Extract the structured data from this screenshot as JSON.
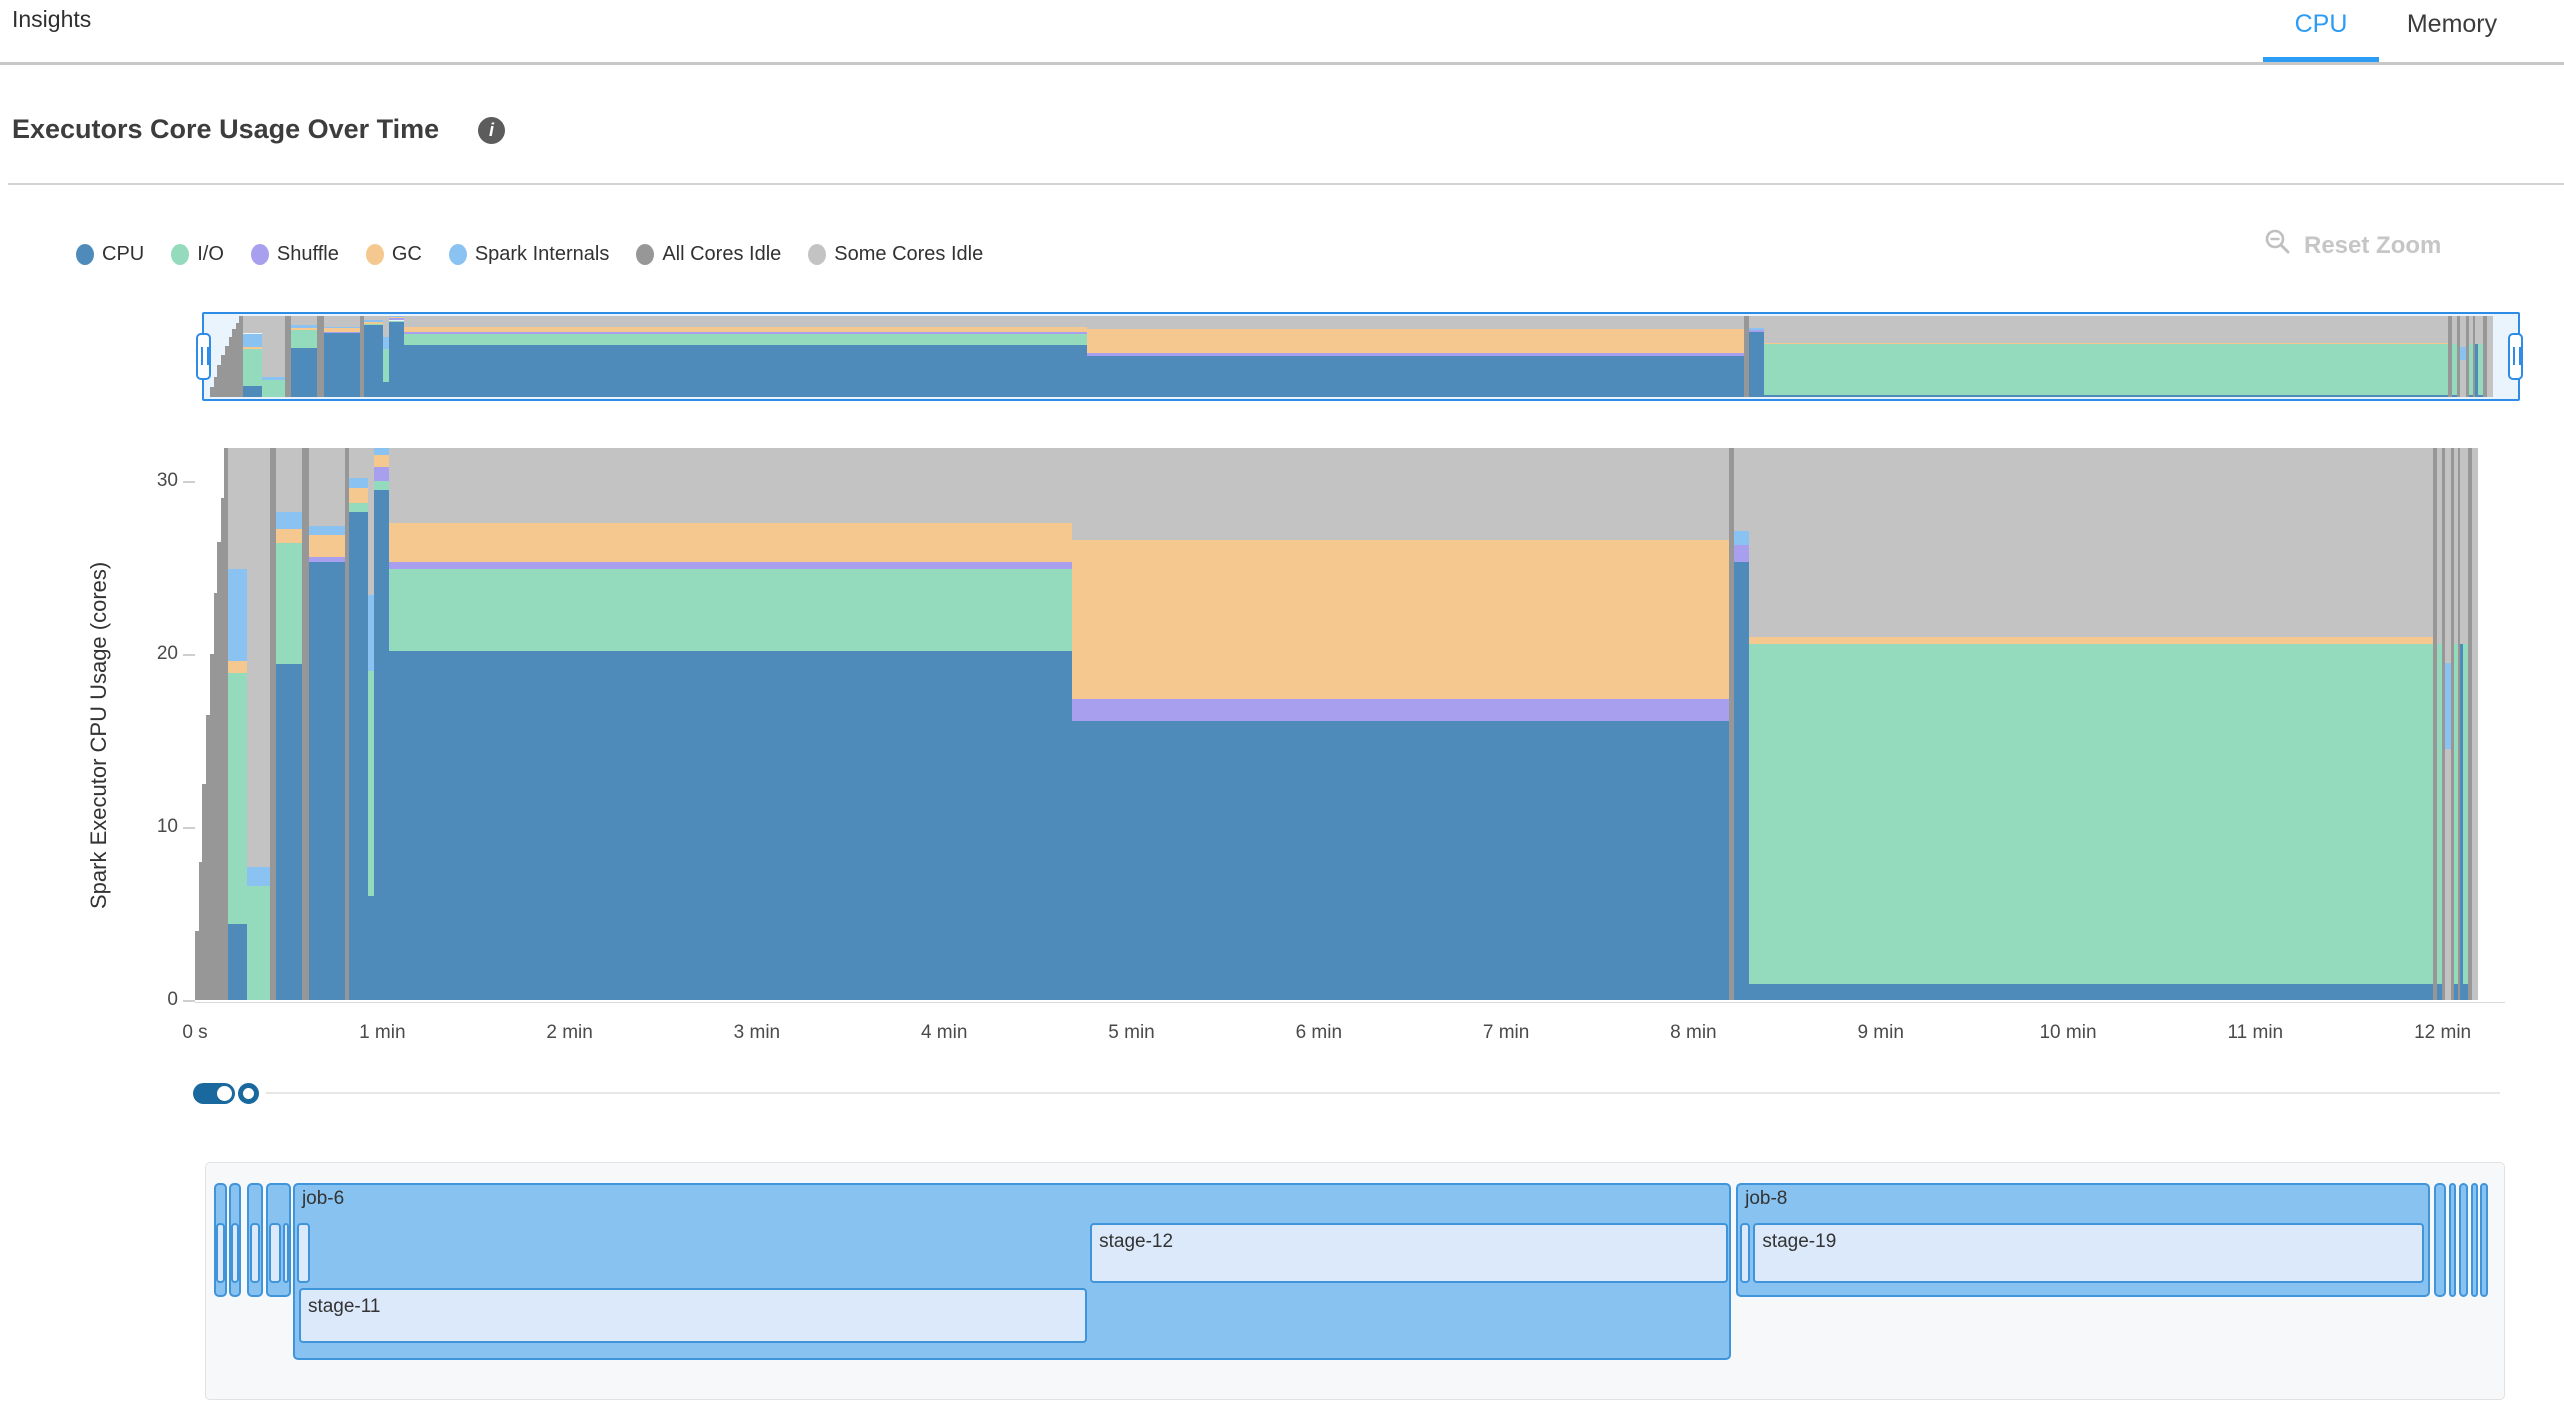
{
  "header": {
    "title": "Insights",
    "tabs": [
      {
        "label": "CPU",
        "active": true
      },
      {
        "label": "Memory",
        "active": false
      }
    ]
  },
  "section": {
    "title": "Executors Core Usage Over Time",
    "info_icon": "i"
  },
  "controls": {
    "reset_zoom_label": "Reset Zoom"
  },
  "legend": {
    "items": [
      {
        "key": "cpu",
        "label": "CPU"
      },
      {
        "key": "io",
        "label": "I/O"
      },
      {
        "key": "shuffle",
        "label": "Shuffle"
      },
      {
        "key": "gc",
        "label": "GC"
      },
      {
        "key": "internals",
        "label": "Spark Internals"
      },
      {
        "key": "all_idle",
        "label": "All Cores Idle"
      },
      {
        "key": "some_idle",
        "label": "Some Cores Idle"
      }
    ]
  },
  "chart_data": {
    "type": "area",
    "title": "Executors Core Usage Over Time",
    "ylabel": "Spark Executor CPU Usage (cores)",
    "xlabel": "",
    "ylim": [
      0,
      32
    ],
    "grid": false,
    "legend_position": "top-left",
    "yticks": [
      {
        "v": 0,
        "label": "0"
      },
      {
        "v": 10,
        "label": "10"
      },
      {
        "v": 20,
        "label": "20"
      },
      {
        "v": 30,
        "label": "30"
      }
    ],
    "xticks": [
      {
        "t": 0,
        "label": "0 s"
      },
      {
        "t": 1,
        "label": "1 min"
      },
      {
        "t": 2,
        "label": "2 min"
      },
      {
        "t": 3,
        "label": "3 min"
      },
      {
        "t": 4,
        "label": "4 min"
      },
      {
        "t": 5,
        "label": "5 min"
      },
      {
        "t": 6,
        "label": "6 min"
      },
      {
        "t": 7,
        "label": "7 min"
      },
      {
        "t": 8,
        "label": "8 min"
      },
      {
        "t": 9,
        "label": "9 min"
      },
      {
        "t": 10,
        "label": "10 min"
      },
      {
        "t": 11,
        "label": "11 min"
      },
      {
        "t": 12,
        "label": "12 min"
      }
    ],
    "colors": {
      "cpu": "#4e8bbb",
      "io": "#93dbbc",
      "shuffle": "#a8a0ee",
      "gc": "#f4c88e",
      "internals": "#8ac2f2",
      "all_idle": "#979797",
      "some_idle": "#c3c3c3"
    },
    "series_keys": [
      "cpu",
      "io",
      "shuffle",
      "gc",
      "internals",
      "all_idle",
      "some_idle"
    ],
    "slices": [
      {
        "t0": 0.0,
        "t1": 0.02,
        "bands": [
          [
            "all_idle",
            0,
            4
          ]
        ]
      },
      {
        "t0": 0.02,
        "t1": 0.04,
        "bands": [
          [
            "all_idle",
            0,
            8
          ]
        ]
      },
      {
        "t0": 0.04,
        "t1": 0.06,
        "bands": [
          [
            "all_idle",
            0,
            12.5
          ]
        ]
      },
      {
        "t0": 0.06,
        "t1": 0.08,
        "bands": [
          [
            "all_idle",
            0,
            16.5
          ]
        ]
      },
      {
        "t0": 0.08,
        "t1": 0.1,
        "bands": [
          [
            "all_idle",
            0,
            20
          ]
        ]
      },
      {
        "t0": 0.1,
        "t1": 0.12,
        "bands": [
          [
            "all_idle",
            0,
            23.5
          ]
        ]
      },
      {
        "t0": 0.12,
        "t1": 0.14,
        "bands": [
          [
            "all_idle",
            0,
            26.5
          ]
        ]
      },
      {
        "t0": 0.14,
        "t1": 0.155,
        "bands": [
          [
            "all_idle",
            0,
            29
          ]
        ]
      },
      {
        "t0": 0.155,
        "t1": 0.176,
        "bands": [
          [
            "all_idle",
            0,
            31.9
          ]
        ]
      },
      {
        "t0": 0.176,
        "t1": 0.277,
        "bands": [
          [
            "cpu",
            0,
            4.4
          ],
          [
            "io",
            4.4,
            18.9
          ],
          [
            "gc",
            18.9,
            19.6
          ],
          [
            "internals",
            19.6,
            24.9
          ],
          [
            "some_idle",
            24.9,
            31.9
          ]
        ]
      },
      {
        "t0": 0.277,
        "t1": 0.4,
        "bands": [
          [
            "io",
            0,
            6.6
          ],
          [
            "internals",
            6.6,
            7.7
          ],
          [
            "some_idle",
            7.7,
            31.9
          ]
        ]
      },
      {
        "t0": 0.4,
        "t1": 0.43,
        "bands": [
          [
            "all_idle",
            0,
            31.9
          ]
        ]
      },
      {
        "t0": 0.43,
        "t1": 0.57,
        "bands": [
          [
            "cpu",
            0,
            19.4
          ],
          [
            "io",
            19.4,
            26.4
          ],
          [
            "gc",
            26.4,
            27.2
          ],
          [
            "internals",
            27.2,
            28.2
          ],
          [
            "some_idle",
            28.2,
            31.9
          ]
        ]
      },
      {
        "t0": 0.57,
        "t1": 0.61,
        "bands": [
          [
            "all_idle",
            0,
            31.9
          ]
        ]
      },
      {
        "t0": 0.61,
        "t1": 0.8,
        "bands": [
          [
            "cpu",
            0,
            25.3
          ],
          [
            "shuffle",
            25.3,
            25.6
          ],
          [
            "gc",
            25.6,
            26.9
          ],
          [
            "internals",
            26.9,
            27.4
          ],
          [
            "some_idle",
            27.4,
            31.9
          ]
        ]
      },
      {
        "t0": 0.8,
        "t1": 0.82,
        "bands": [
          [
            "all_idle",
            0,
            31.9
          ]
        ]
      },
      {
        "t0": 0.82,
        "t1": 0.925,
        "bands": [
          [
            "cpu",
            0,
            28.2
          ],
          [
            "io",
            28.2,
            28.7
          ],
          [
            "gc",
            28.7,
            29.6
          ],
          [
            "internals",
            29.6,
            30.2
          ],
          [
            "some_idle",
            30.2,
            31.9
          ]
        ]
      },
      {
        "t0": 0.925,
        "t1": 0.955,
        "bands": [
          [
            "cpu",
            0,
            6
          ],
          [
            "io",
            6,
            19
          ],
          [
            "internals",
            19,
            23.4
          ],
          [
            "some_idle",
            23.4,
            31.9
          ]
        ]
      },
      {
        "t0": 0.955,
        "t1": 1.035,
        "bands": [
          [
            "cpu",
            0,
            29.5
          ],
          [
            "io",
            29.5,
            30
          ],
          [
            "shuffle",
            30,
            30.8
          ],
          [
            "gc",
            30.8,
            31.5
          ],
          [
            "internals",
            31.5,
            31.9
          ]
        ]
      },
      {
        "t0": 1.035,
        "t1": 4.68,
        "bands": [
          [
            "cpu",
            0,
            20.2
          ],
          [
            "io",
            20.2,
            24.9
          ],
          [
            "shuffle",
            24.9,
            25.3
          ],
          [
            "gc",
            25.3,
            27.6
          ],
          [
            "some_idle",
            27.6,
            31.9
          ]
        ]
      },
      {
        "t0": 4.68,
        "t1": 8.19,
        "bands": [
          [
            "cpu",
            0,
            16.1
          ],
          [
            "shuffle",
            16.1,
            17.4
          ],
          [
            "gc",
            17.4,
            26.6
          ],
          [
            "some_idle",
            26.6,
            31.9
          ]
        ]
      },
      {
        "t0": 8.19,
        "t1": 8.215,
        "bands": [
          [
            "all_idle",
            0,
            31.9
          ]
        ]
      },
      {
        "t0": 8.215,
        "t1": 8.295,
        "bands": [
          [
            "cpu",
            0,
            25.3
          ],
          [
            "shuffle",
            25.3,
            26.3
          ],
          [
            "internals",
            26.3,
            27.1
          ],
          [
            "some_idle",
            27.1,
            31.9
          ]
        ]
      },
      {
        "t0": 8.295,
        "t1": 11.95,
        "bands": [
          [
            "cpu",
            0,
            0.95
          ],
          [
            "io",
            0.95,
            20.6
          ],
          [
            "gc",
            20.6,
            21.0
          ],
          [
            "some_idle",
            21.0,
            31.9
          ]
        ]
      },
      {
        "t0": 11.95,
        "t1": 11.97,
        "bands": [
          [
            "all_idle",
            0,
            31.9
          ]
        ]
      },
      {
        "t0": 11.97,
        "t1": 11.995,
        "bands": [
          [
            "cpu",
            0,
            0.95
          ],
          [
            "io",
            0.95,
            20.6
          ],
          [
            "some_idle",
            20.6,
            31.9
          ]
        ]
      },
      {
        "t0": 11.995,
        "t1": 12.015,
        "bands": [
          [
            "all_idle",
            0,
            31.9
          ]
        ]
      },
      {
        "t0": 12.015,
        "t1": 12.045,
        "bands": [
          [
            "some_idle",
            0,
            14.5
          ],
          [
            "internals",
            14.5,
            19.5
          ],
          [
            "some_idle",
            19.5,
            31.9
          ]
        ]
      },
      {
        "t0": 12.045,
        "t1": 12.06,
        "bands": [
          [
            "all_idle",
            0,
            31.9
          ]
        ]
      },
      {
        "t0": 12.06,
        "t1": 12.08,
        "bands": [
          [
            "cpu",
            0,
            0.95
          ],
          [
            "io",
            0.95,
            20.6
          ],
          [
            "some_idle",
            20.6,
            31.9
          ]
        ]
      },
      {
        "t0": 12.08,
        "t1": 12.095,
        "bands": [
          [
            "all_idle",
            0,
            31.9
          ]
        ]
      },
      {
        "t0": 12.095,
        "t1": 12.11,
        "bands": [
          [
            "cpu",
            0,
            20.6
          ],
          [
            "some_idle",
            20.6,
            31.9
          ]
        ]
      },
      {
        "t0": 12.11,
        "t1": 12.135,
        "bands": [
          [
            "cpu",
            0,
            0.95
          ],
          [
            "io",
            0.95,
            20.6
          ],
          [
            "some_idle",
            20.6,
            31.9
          ]
        ]
      },
      {
        "t0": 12.135,
        "t1": 12.155,
        "bands": [
          [
            "all_idle",
            0,
            31.9
          ]
        ]
      },
      {
        "t0": 12.155,
        "t1": 12.19,
        "bands": [
          [
            "some_idle",
            0,
            31.9
          ]
        ]
      }
    ]
  },
  "gantt": {
    "jobs": [
      {
        "label": "",
        "t0": 0.1,
        "t1": 0.17,
        "tall": false,
        "stages": [
          {
            "label": "",
            "t0": 0.112,
            "t1": 0.158,
            "row": 1
          }
        ]
      },
      {
        "label": "",
        "t0": 0.182,
        "t1": 0.248,
        "tall": false,
        "stages": [
          {
            "label": "",
            "t0": 0.194,
            "t1": 0.236,
            "row": 1
          }
        ]
      },
      {
        "label": "",
        "t0": 0.278,
        "t1": 0.364,
        "tall": false,
        "stages": [
          {
            "label": "",
            "t0": 0.294,
            "t1": 0.348,
            "row": 1
          }
        ]
      },
      {
        "label": "",
        "t0": 0.38,
        "t1": 0.512,
        "tall": false,
        "stages": [
          {
            "label": "",
            "t0": 0.396,
            "t1": 0.458,
            "row": 1
          },
          {
            "label": "",
            "t0": 0.47,
            "t1": 0.502,
            "row": 1
          }
        ]
      },
      {
        "label": "job-6",
        "t0": 0.523,
        "t1": 8.2,
        "tall": true,
        "stages": [
          {
            "label": "",
            "t0": 0.545,
            "t1": 0.615,
            "row": 1
          },
          {
            "label": "stage-11",
            "t0": 0.555,
            "t1": 4.763,
            "row": 2
          },
          {
            "label": "stage-12",
            "t0": 4.779,
            "t1": 8.185,
            "row": 1
          }
        ]
      },
      {
        "label": "job-8",
        "t0": 8.228,
        "t1": 11.935,
        "tall": false,
        "stages": [
          {
            "label": "",
            "t0": 8.248,
            "t1": 8.302,
            "row": 1
          },
          {
            "label": "stage-19",
            "t0": 8.32,
            "t1": 11.9,
            "row": 1
          }
        ]
      },
      {
        "label": "",
        "t0": 11.955,
        "t1": 12.02,
        "tall": false,
        "stages": []
      },
      {
        "label": "",
        "t0": 12.033,
        "t1": 12.073,
        "tall": false,
        "stages": []
      },
      {
        "label": "",
        "t0": 12.088,
        "t1": 12.136,
        "tall": false,
        "stages": []
      },
      {
        "label": "",
        "t0": 12.152,
        "t1": 12.19,
        "tall": false,
        "stages": []
      },
      {
        "label": "",
        "t0": 12.202,
        "t1": 12.24,
        "tall": false,
        "stages": []
      }
    ]
  }
}
